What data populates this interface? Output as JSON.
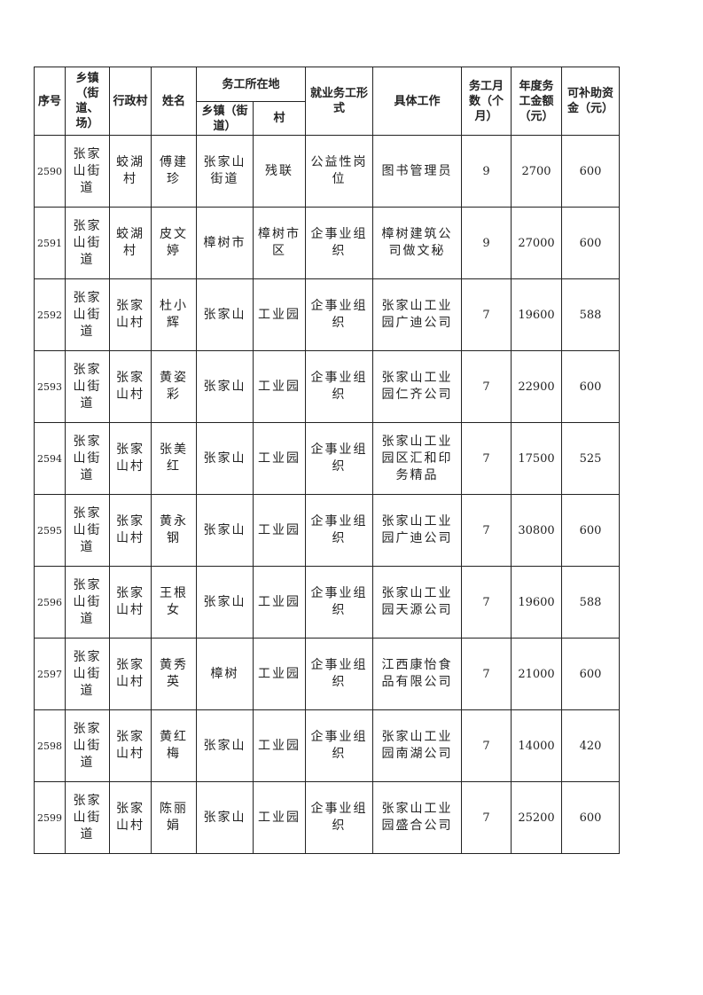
{
  "headers": {
    "seq": "序号",
    "town": "乡镇（街道、场）",
    "village": "行政村",
    "name": "姓名",
    "work_location": "务工所在地",
    "work_town": "乡镇（街道）",
    "work_village": "村",
    "form": "就业务工形式",
    "job": "具体工作",
    "months": "务工月数（个月）",
    "annual": "年度务工金额（元）",
    "subsidy": "可补助资金（元）"
  },
  "rows": [
    {
      "seq": "2590",
      "town": "张家山街道",
      "village": "蛟湖村",
      "name": "傅建珍",
      "work_town": "张家山街道",
      "work_village": "残联",
      "form": "公益性岗位",
      "job": "图书管理员",
      "months": "9",
      "annual": "2700",
      "subsidy": "600"
    },
    {
      "seq": "2591",
      "town": "张家山街道",
      "village": "蛟湖村",
      "name": "皮文婷",
      "work_town": "樟树市",
      "work_village": "樟树市区",
      "form": "企事业组织",
      "job": "樟树建筑公司做文秘",
      "months": "9",
      "annual": "27000",
      "subsidy": "600"
    },
    {
      "seq": "2592",
      "town": "张家山街道",
      "village": "张家山村",
      "name": "杜小辉",
      "work_town": "张家山",
      "work_village": "工业园",
      "form": "企事业组织",
      "job": "张家山工业园广迪公司",
      "months": "7",
      "annual": "19600",
      "subsidy": "588"
    },
    {
      "seq": "2593",
      "town": "张家山街道",
      "village": "张家山村",
      "name": "黄姿彩",
      "work_town": "张家山",
      "work_village": "工业园",
      "form": "企事业组织",
      "job": "张家山工业园仁齐公司",
      "months": "7",
      "annual": "22900",
      "subsidy": "600"
    },
    {
      "seq": "2594",
      "town": "张家山街道",
      "village": "张家山村",
      "name": "张美红",
      "work_town": "张家山",
      "work_village": "工业园",
      "form": "企事业组织",
      "job": "张家山工业园区汇和印务精品",
      "months": "7",
      "annual": "17500",
      "subsidy": "525"
    },
    {
      "seq": "2595",
      "town": "张家山街道",
      "village": "张家山村",
      "name": "黄永钢",
      "work_town": "张家山",
      "work_village": "工业园",
      "form": "企事业组织",
      "job": "张家山工业园广迪公司",
      "months": "7",
      "annual": "30800",
      "subsidy": "600"
    },
    {
      "seq": "2596",
      "town": "张家山街道",
      "village": "张家山村",
      "name": "王根女",
      "work_town": "张家山",
      "work_village": "工业园",
      "form": "企事业组织",
      "job": "张家山工业园天源公司",
      "months": "7",
      "annual": "19600",
      "subsidy": "588"
    },
    {
      "seq": "2597",
      "town": "张家山街道",
      "village": "张家山村",
      "name": "黄秀英",
      "work_town": "樟树",
      "work_village": "工业园",
      "form": "企事业组织",
      "job": "江西康怡食品有限公司",
      "months": "7",
      "annual": "21000",
      "subsidy": "600"
    },
    {
      "seq": "2598",
      "town": "张家山街道",
      "village": "张家山村",
      "name": "黄红梅",
      "work_town": "张家山",
      "work_village": "工业园",
      "form": "企事业组织",
      "job": "张家山工业园南湖公司",
      "months": "7",
      "annual": "14000",
      "subsidy": "420"
    },
    {
      "seq": "2599",
      "town": "张家山街道",
      "village": "张家山村",
      "name": "陈丽娟",
      "work_town": "张家山",
      "work_village": "工业园",
      "form": "企事业组织",
      "job": "张家山工业园盛合公司",
      "months": "7",
      "annual": "25200",
      "subsidy": "600"
    }
  ]
}
